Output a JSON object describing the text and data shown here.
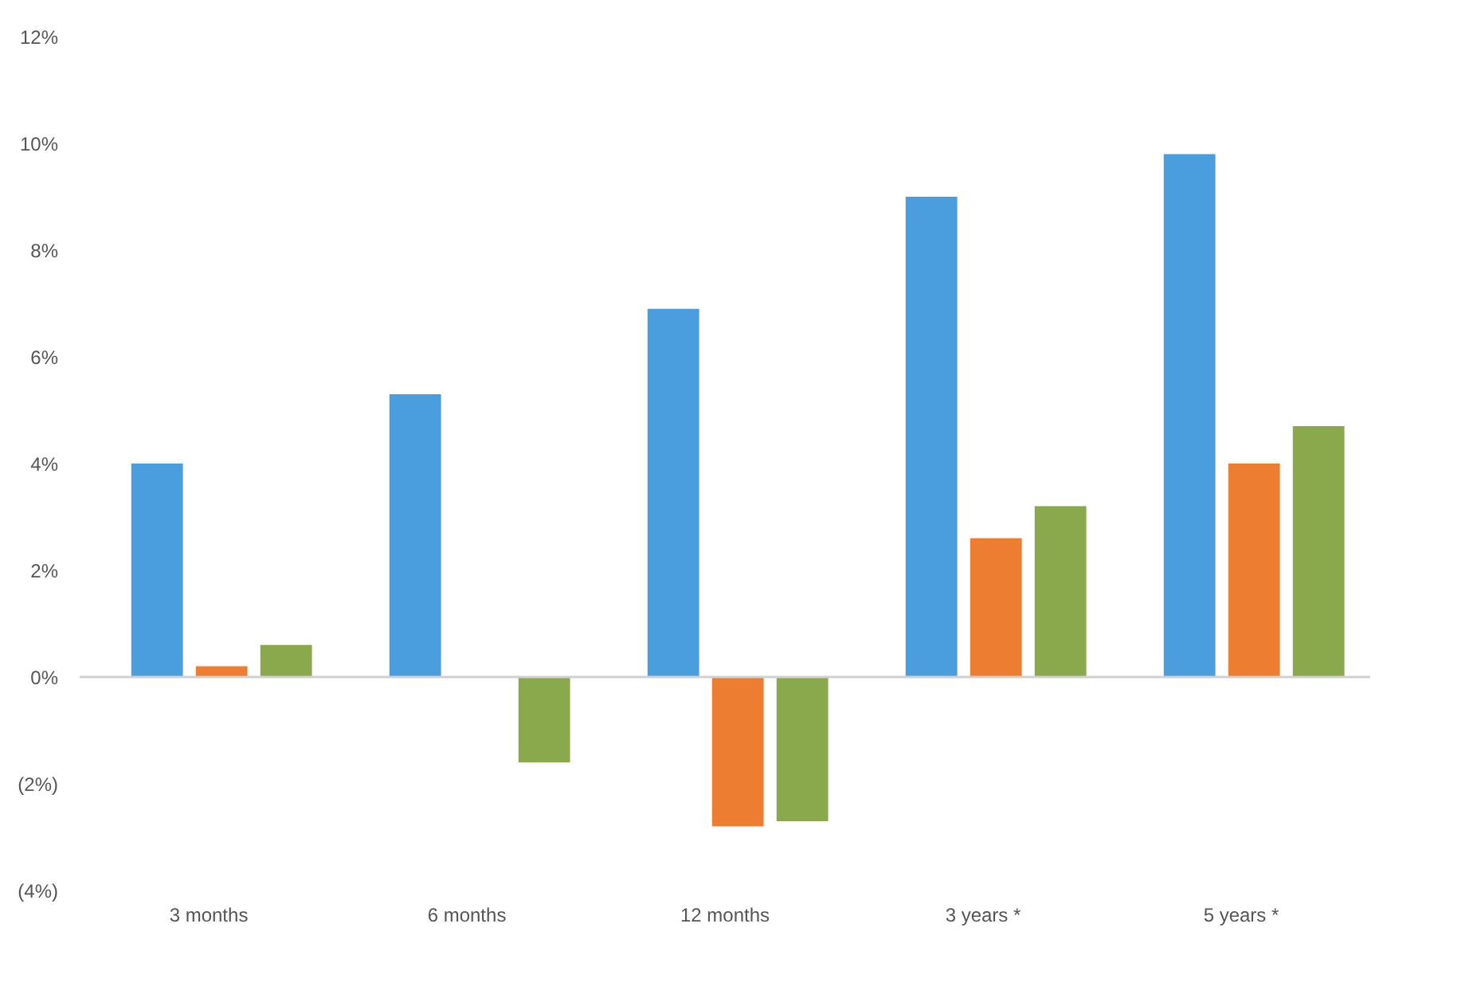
{
  "chart_data": {
    "type": "bar",
    "categories": [
      "3 months",
      "6 months",
      "12 months",
      "3 years *",
      "5 years *"
    ],
    "series": [
      {
        "color": "#4a9ede",
        "values": [
          4.0,
          5.3,
          6.9,
          9.0,
          9.8
        ]
      },
      {
        "color": "#ed7d31",
        "values": [
          0.2,
          null,
          -2.8,
          2.6,
          4.0
        ]
      },
      {
        "color": "#8aa94c",
        "values": [
          0.6,
          -1.6,
          -2.7,
          3.2,
          4.7
        ]
      }
    ],
    "ylim": [
      -4,
      12
    ],
    "yticks": [
      {
        "value": -4,
        "label": "(4%)"
      },
      {
        "value": -2,
        "label": "(2%)"
      },
      {
        "value": 0,
        "label": "0%"
      },
      {
        "value": 2,
        "label": "2%"
      },
      {
        "value": 4,
        "label": "4%"
      },
      {
        "value": 6,
        "label": "6%"
      },
      {
        "value": 8,
        "label": "8%"
      },
      {
        "value": 10,
        "label": "10%"
      },
      {
        "value": 12,
        "label": "12%"
      }
    ],
    "ref_lines": [
      {
        "axis": "y",
        "value": 0,
        "color": "#d0d0d0"
      }
    ],
    "grid": false,
    "legend": false
  }
}
